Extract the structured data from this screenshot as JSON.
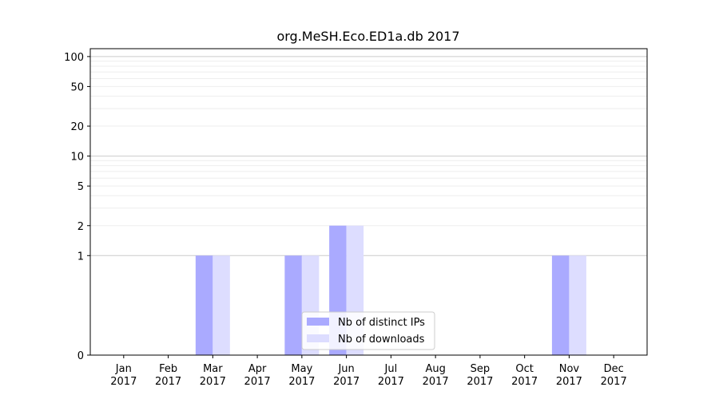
{
  "chart_data": {
    "type": "bar",
    "title": "org.MeSH.Eco.ED1a.db 2017",
    "xlabel": "",
    "ylabel": "",
    "y_scale": "symlog",
    "ylim": [
      0,
      120
    ],
    "y_ticks": [
      0,
      1,
      2,
      5,
      10,
      20,
      50,
      100
    ],
    "grid": true,
    "legend_position": "lower-center",
    "categories": [
      {
        "month": "Jan",
        "year": "2017"
      },
      {
        "month": "Feb",
        "year": "2017"
      },
      {
        "month": "Mar",
        "year": "2017"
      },
      {
        "month": "Apr",
        "year": "2017"
      },
      {
        "month": "May",
        "year": "2017"
      },
      {
        "month": "Jun",
        "year": "2017"
      },
      {
        "month": "Jul",
        "year": "2017"
      },
      {
        "month": "Aug",
        "year": "2017"
      },
      {
        "month": "Sep",
        "year": "2017"
      },
      {
        "month": "Oct",
        "year": "2017"
      },
      {
        "month": "Nov",
        "year": "2017"
      },
      {
        "month": "Dec",
        "year": "2017"
      }
    ],
    "series": [
      {
        "name": "Nb of distinct IPs",
        "color": "#aaaaff",
        "values": [
          0,
          0,
          1,
          0,
          1,
          2,
          0,
          0,
          0,
          0,
          1,
          0
        ]
      },
      {
        "name": "Nb of downloads",
        "color": "#ddddff",
        "values": [
          0,
          0,
          1,
          0,
          1,
          2,
          0,
          0,
          0,
          0,
          1,
          0
        ]
      }
    ]
  }
}
